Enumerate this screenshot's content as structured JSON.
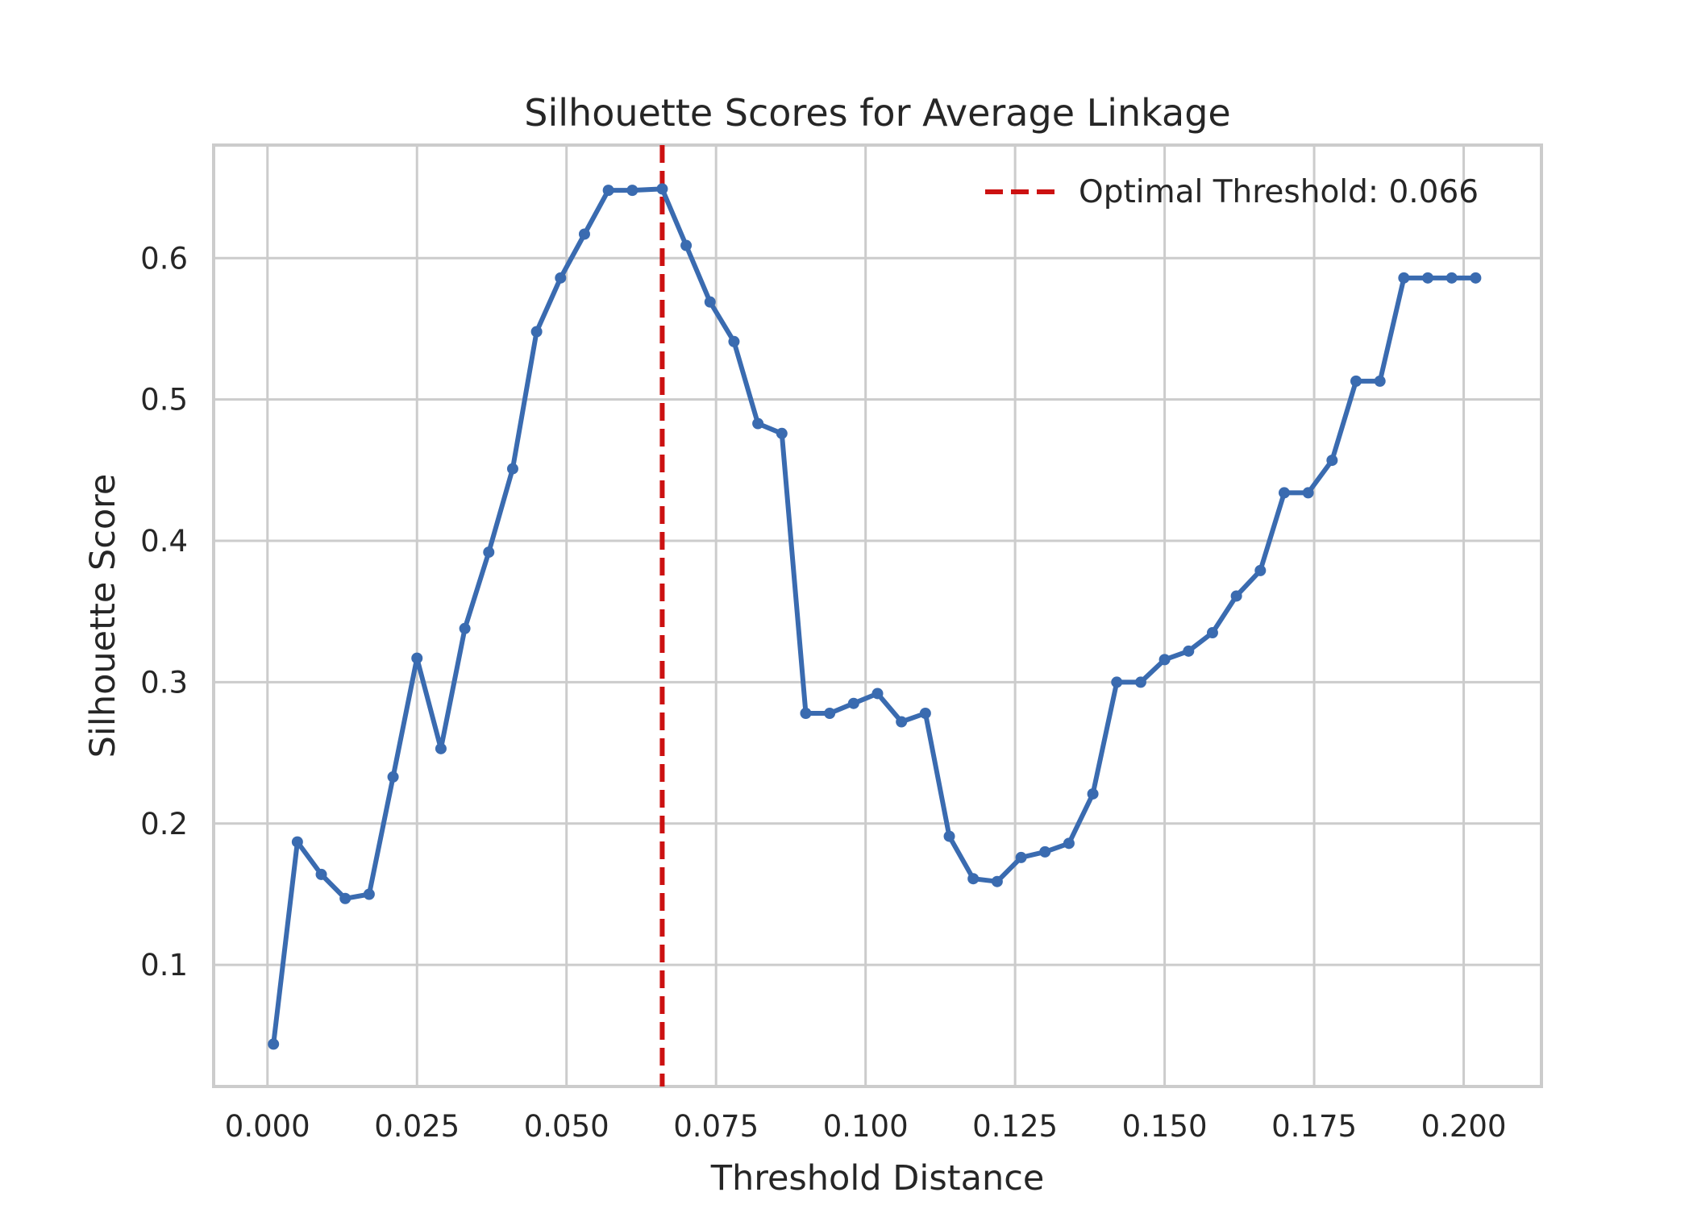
{
  "chart_data": {
    "type": "line",
    "title": "Silhouette Scores for Average Linkage",
    "xlabel": "Threshold Distance",
    "ylabel": "Silhouette Score",
    "xlim": [
      -0.009,
      0.213
    ],
    "ylim": [
      0.014,
      0.68
    ],
    "x_ticks": [
      0.0,
      0.025,
      0.05,
      0.075,
      0.1,
      0.125,
      0.15,
      0.175,
      0.2
    ],
    "x_tick_labels": [
      "0.000",
      "0.025",
      "0.050",
      "0.075",
      "0.100",
      "0.125",
      "0.150",
      "0.175",
      "0.200"
    ],
    "y_ticks": [
      0.1,
      0.2,
      0.3,
      0.4,
      0.5,
      0.6
    ],
    "y_tick_labels": [
      "0.1",
      "0.2",
      "0.3",
      "0.4",
      "0.5",
      "0.6"
    ],
    "grid": true,
    "legend_position": "top-right",
    "series": [
      {
        "color": "#3a6bb0",
        "x": [
          0.001,
          0.005,
          0.009,
          0.013,
          0.017,
          0.021,
          0.025,
          0.029,
          0.033,
          0.037,
          0.041,
          0.045,
          0.049,
          0.053,
          0.057,
          0.061,
          0.066,
          0.07,
          0.074,
          0.078,
          0.082,
          0.086,
          0.09,
          0.094,
          0.098,
          0.102,
          0.106,
          0.11,
          0.114,
          0.118,
          0.122,
          0.126,
          0.13,
          0.134,
          0.138,
          0.142,
          0.146,
          0.15,
          0.154,
          0.158,
          0.162,
          0.166,
          0.17,
          0.174,
          0.178,
          0.182,
          0.186,
          0.19,
          0.194,
          0.198,
          0.202
        ],
        "y": [
          0.044,
          0.187,
          0.164,
          0.147,
          0.15,
          0.233,
          0.317,
          0.253,
          0.338,
          0.392,
          0.451,
          0.548,
          0.586,
          0.617,
          0.648,
          0.648,
          0.649,
          0.609,
          0.569,
          0.541,
          0.483,
          0.476,
          0.278,
          0.278,
          0.285,
          0.292,
          0.272,
          0.278,
          0.191,
          0.161,
          0.159,
          0.176,
          0.18,
          0.186,
          0.221,
          0.3,
          0.3,
          0.316,
          0.322,
          0.335,
          0.361,
          0.379,
          0.434,
          0.434,
          0.457,
          0.513,
          0.513,
          0.586,
          0.586,
          0.586,
          0.586
        ]
      }
    ],
    "reference_line": {
      "orientation": "vertical",
      "x": 0.066,
      "color": "#cc1111",
      "style": "dashed",
      "label": "Optimal Threshold: 0.066"
    }
  }
}
